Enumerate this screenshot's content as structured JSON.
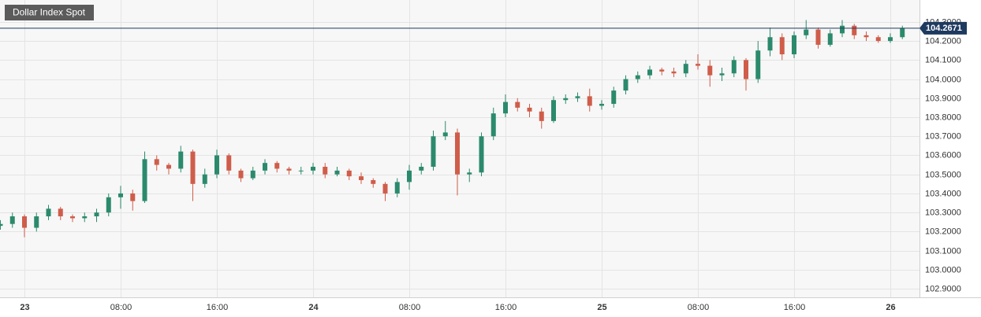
{
  "chart_data": {
    "type": "candlestick",
    "title": "Dollar Index Spot",
    "categories": [
      null,
      null,
      "23",
      null,
      null,
      null,
      null,
      null,
      null,
      null,
      "08:00",
      null,
      null,
      null,
      null,
      null,
      null,
      null,
      "16:00",
      null,
      null,
      null,
      null,
      null,
      null,
      null,
      "24",
      null,
      null,
      null,
      null,
      null,
      null,
      null,
      "08:00",
      null,
      null,
      null,
      null,
      null,
      null,
      null,
      "16:00",
      null,
      null,
      null,
      null,
      null,
      null,
      null,
      "25",
      null,
      null,
      null,
      null,
      null,
      null,
      null,
      "08:00",
      null,
      null,
      null,
      null,
      null,
      null,
      null,
      "16:00",
      null,
      null,
      null,
      null,
      null,
      null,
      null,
      "26",
      null
    ],
    "open": [
      103.23,
      103.24,
      103.28,
      103.22,
      103.28,
      103.32,
      103.28,
      103.27,
      103.28,
      103.3,
      103.38,
      103.4,
      103.36,
      103.58,
      103.55,
      103.53,
      103.62,
      103.45,
      103.5,
      103.6,
      103.52,
      103.48,
      103.52,
      103.56,
      103.53,
      103.52,
      103.52,
      103.54,
      103.5,
      103.52,
      103.49,
      103.47,
      103.45,
      103.4,
      103.46,
      103.52,
      103.54,
      103.7,
      103.72,
      103.5,
      103.51,
      103.7,
      103.82,
      103.88,
      103.85,
      103.83,
      103.78,
      103.89,
      103.9,
      103.91,
      103.86,
      103.87,
      103.94,
      104.0,
      104.02,
      104.05,
      104.04,
      104.03,
      104.08,
      104.07,
      104.02,
      104.03,
      104.1,
      104.0,
      104.15,
      104.22,
      104.13,
      104.23,
      104.26,
      104.18,
      104.24,
      104.28,
      104.23,
      104.22,
      104.2,
      104.22
    ],
    "high": [
      103.26,
      103.3,
      103.29,
      103.3,
      103.34,
      103.33,
      103.29,
      103.3,
      103.32,
      103.4,
      103.44,
      103.42,
      103.62,
      103.6,
      103.56,
      103.65,
      103.63,
      103.53,
      103.63,
      103.61,
      103.53,
      103.54,
      103.58,
      103.57,
      103.54,
      103.54,
      103.56,
      103.56,
      103.54,
      103.53,
      103.51,
      103.48,
      103.46,
      103.48,
      103.55,
      103.56,
      103.73,
      103.78,
      103.74,
      103.53,
      103.72,
      103.85,
      103.92,
      103.9,
      103.87,
      103.85,
      103.91,
      103.92,
      103.93,
      103.95,
      103.89,
      103.96,
      104.02,
      104.04,
      104.07,
      104.06,
      104.06,
      104.1,
      104.13,
      104.1,
      104.06,
      104.12,
      104.11,
      104.2,
      104.27,
      104.24,
      104.25,
      104.31,
      104.27,
      104.26,
      104.31,
      104.29,
      104.25,
      104.23,
      104.24,
      104.28
    ],
    "low": [
      103.21,
      103.22,
      103.17,
      103.2,
      103.26,
      103.26,
      103.25,
      103.25,
      103.25,
      103.28,
      103.32,
      103.31,
      103.35,
      103.52,
      103.5,
      103.51,
      103.36,
      103.43,
      103.48,
      103.5,
      103.46,
      103.47,
      103.5,
      103.51,
      103.5,
      103.5,
      103.5,
      103.48,
      103.49,
      103.47,
      103.45,
      103.43,
      103.36,
      103.38,
      103.42,
      103.5,
      103.52,
      103.68,
      103.39,
      103.46,
      103.49,
      103.68,
      103.8,
      103.83,
      103.8,
      103.74,
      103.77,
      103.87,
      103.88,
      103.83,
      103.84,
      103.85,
      103.92,
      103.98,
      104.0,
      104.02,
      104.01,
      104.01,
      104.05,
      103.96,
      103.99,
      104.01,
      103.94,
      103.98,
      104.12,
      104.1,
      104.11,
      104.21,
      104.16,
      104.17,
      104.22,
      104.21,
      104.2,
      104.19,
      104.19,
      104.21
    ],
    "close": [
      103.24,
      103.28,
      103.22,
      103.28,
      103.32,
      103.28,
      103.27,
      103.28,
      103.3,
      103.38,
      103.4,
      103.36,
      103.58,
      103.55,
      103.53,
      103.62,
      103.45,
      103.5,
      103.6,
      103.52,
      103.48,
      103.52,
      103.56,
      103.53,
      103.52,
      103.52,
      103.54,
      103.5,
      103.52,
      103.49,
      103.47,
      103.45,
      103.4,
      103.46,
      103.52,
      103.54,
      103.7,
      103.72,
      103.5,
      103.51,
      103.7,
      103.82,
      103.88,
      103.85,
      103.83,
      103.78,
      103.89,
      103.9,
      103.91,
      103.86,
      103.87,
      103.94,
      104.0,
      104.02,
      104.05,
      104.04,
      104.03,
      104.08,
      104.07,
      104.02,
      104.03,
      104.1,
      104.0,
      104.15,
      104.22,
      104.13,
      104.23,
      104.26,
      104.18,
      104.24,
      104.28,
      104.23,
      104.22,
      104.2,
      104.22,
      104.2671
    ],
    "up_color": "#2b8a6c",
    "down_color": "#cf5d4a",
    "last": 104.2671,
    "last_color": "#1f3a5f",
    "ylim": [
      102.855,
      104.415
    ],
    "yticks": [
      {
        "value": 102.9,
        "label": "102.9000"
      },
      {
        "value": 103.0,
        "label": "103.0000"
      },
      {
        "value": 103.1,
        "label": "103.1000"
      },
      {
        "value": 103.2,
        "label": "103.2000"
      },
      {
        "value": 103.3,
        "label": "103.3000"
      },
      {
        "value": 103.4,
        "label": "103.4000"
      },
      {
        "value": 103.5,
        "label": "103.5000"
      },
      {
        "value": 103.6,
        "label": "103.6000"
      },
      {
        "value": 103.7,
        "label": "103.7000"
      },
      {
        "value": 103.8,
        "label": "103.8000"
      },
      {
        "value": 103.9,
        "label": "103.9000"
      },
      {
        "value": 104.0,
        "label": "104.0000"
      },
      {
        "value": 104.1,
        "label": "104.1000"
      },
      {
        "value": 104.2,
        "label": "104.2000"
      },
      {
        "value": 104.3,
        "label": "104.3000"
      }
    ],
    "grid": true
  }
}
